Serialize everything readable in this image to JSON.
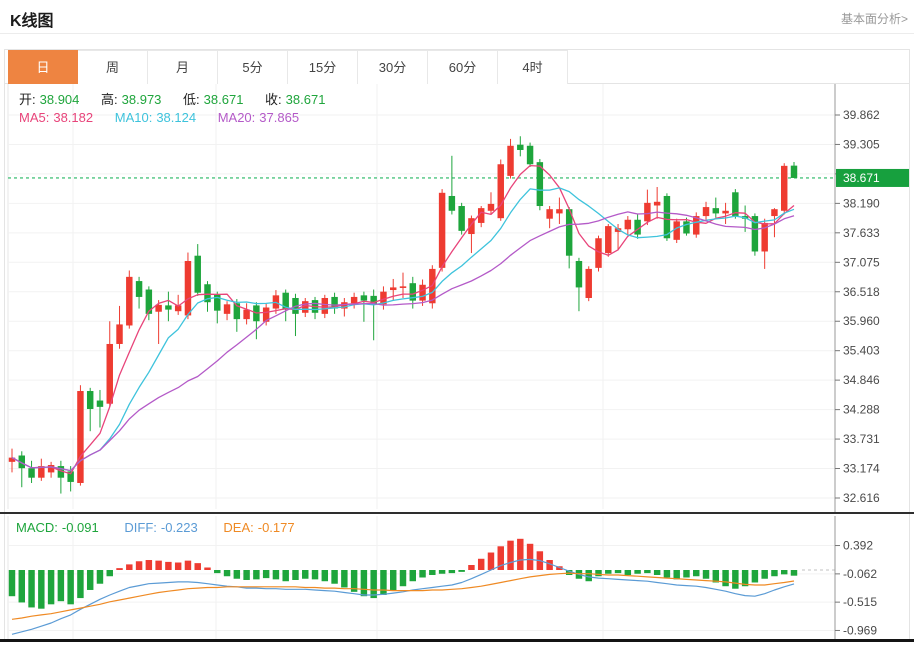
{
  "header": {
    "title": "K线图",
    "link": "基本面分析>"
  },
  "tabs": {
    "items": [
      "日",
      "周",
      "月",
      "5分",
      "15分",
      "30分",
      "60分",
      "4时"
    ],
    "active_index": 0
  },
  "legend": {
    "ohlc": {
      "open_label": "开:",
      "open_value": "38.904",
      "high_label": "高:",
      "high_value": "38.973",
      "low_label": "低:",
      "low_value": "38.671",
      "close_label": "收:",
      "close_value": "38.671"
    },
    "ma": {
      "ma5_label": "MA5:",
      "ma5_value": "38.182",
      "ma10_label": "MA10:",
      "ma10_value": "38.124",
      "ma20_label": "MA20:",
      "ma20_value": "37.865"
    },
    "macd": {
      "macd_label": "MACD:",
      "macd_value": "-0.091",
      "diff_label": "DIFF:",
      "diff_value": "-0.223",
      "dea_label": "DEA:",
      "dea_value": "-0.177"
    }
  },
  "price_badge": {
    "value": "38.671"
  },
  "colors": {
    "up": "#ee3b31",
    "down": "#1ea53c",
    "badge": "#17a03e",
    "dashed_line": "#4cc47e",
    "ma5": "#e8447a",
    "ma10": "#3ec3dc",
    "ma20": "#b45ac8",
    "diff": "#5b9bd5",
    "dea": "#ef8a24",
    "active_tab": "#ee8441",
    "grid": "#f2f2f2",
    "axis_line": "#9a9a9a",
    "axis_text": "#4a4a4a",
    "ohlc_value": "#1fa53c"
  },
  "chart_data": {
    "type": "candlestick_with_macd",
    "main": {
      "type": "candlestick",
      "y_ticks": [
        39.862,
        39.305,
        38.748,
        38.19,
        37.633,
        37.075,
        36.518,
        35.96,
        35.403,
        34.846,
        34.288,
        33.731,
        33.174,
        32.616
      ],
      "current_price": 38.671,
      "ma_periods": [
        5,
        10,
        20
      ],
      "candles_ohlc": [
        [
          33.3,
          33.55,
          33.1,
          33.38
        ],
        [
          33.42,
          33.5,
          32.82,
          33.18
        ],
        [
          33.18,
          33.32,
          32.9,
          33.0
        ],
        [
          33.0,
          33.36,
          32.94,
          33.22
        ],
        [
          33.1,
          33.3,
          33.0,
          33.24
        ],
        [
          33.22,
          33.32,
          32.7,
          33.0
        ],
        [
          33.12,
          33.22,
          32.74,
          32.92
        ],
        [
          32.9,
          34.75,
          32.85,
          34.64
        ],
        [
          34.64,
          34.7,
          33.88,
          34.3
        ],
        [
          34.46,
          34.66,
          33.95,
          34.34
        ],
        [
          34.4,
          35.96,
          34.34,
          35.53
        ],
        [
          35.53,
          36.25,
          35.44,
          35.9
        ],
        [
          35.88,
          36.92,
          35.82,
          36.8
        ],
        [
          36.72,
          36.8,
          36.2,
          36.42
        ],
        [
          36.56,
          36.62,
          35.98,
          36.1
        ],
        [
          36.14,
          36.36,
          35.53,
          36.27
        ],
        [
          36.26,
          36.52,
          35.96,
          36.18
        ],
        [
          36.15,
          36.46,
          36.08,
          36.26
        ],
        [
          36.07,
          37.26,
          36.0,
          37.1
        ],
        [
          37.2,
          37.42,
          36.44,
          36.5
        ],
        [
          36.66,
          36.72,
          36.14,
          36.32
        ],
        [
          36.46,
          36.52,
          35.92,
          36.16
        ],
        [
          36.1,
          36.34,
          35.98,
          36.28
        ],
        [
          36.3,
          36.38,
          35.76,
          36.0
        ],
        [
          36.0,
          36.3,
          35.9,
          36.18
        ],
        [
          36.26,
          36.32,
          35.62,
          35.96
        ],
        [
          35.95,
          36.3,
          35.88,
          36.22
        ],
        [
          36.2,
          36.55,
          36.1,
          36.45
        ],
        [
          36.5,
          36.56,
          35.96,
          36.18
        ],
        [
          36.4,
          36.48,
          35.68,
          36.1
        ],
        [
          36.12,
          36.4,
          36.04,
          36.34
        ],
        [
          36.36,
          36.42,
          36.0,
          36.12
        ],
        [
          36.1,
          36.46,
          36.02,
          36.4
        ],
        [
          36.42,
          36.5,
          36.1,
          36.2
        ],
        [
          36.2,
          36.4,
          36.05,
          36.32
        ],
        [
          36.3,
          36.5,
          36.2,
          36.42
        ],
        [
          36.45,
          36.52,
          35.95,
          36.35
        ],
        [
          36.44,
          36.56,
          35.6,
          36.28
        ],
        [
          36.28,
          36.62,
          36.18,
          36.52
        ],
        [
          36.55,
          36.76,
          36.35,
          36.6
        ],
        [
          36.6,
          36.88,
          36.4,
          36.62
        ],
        [
          36.68,
          36.8,
          36.2,
          36.35
        ],
        [
          36.35,
          36.75,
          36.25,
          36.65
        ],
        [
          36.3,
          37.02,
          36.2,
          36.95
        ],
        [
          36.97,
          38.46,
          36.9,
          38.39
        ],
        [
          38.33,
          39.09,
          37.98,
          38.05
        ],
        [
          38.14,
          38.2,
          37.6,
          37.67
        ],
        [
          37.61,
          37.96,
          37.25,
          37.91
        ],
        [
          37.82,
          38.14,
          37.74,
          38.1
        ],
        [
          38.05,
          38.4,
          37.98,
          38.18
        ],
        [
          37.91,
          39.02,
          37.86,
          38.93
        ],
        [
          38.71,
          39.41,
          38.66,
          39.28
        ],
        [
          39.3,
          39.46,
          39.08,
          39.2
        ],
        [
          39.28,
          39.34,
          38.88,
          38.93
        ],
        [
          38.97,
          39.03,
          38.06,
          38.14
        ],
        [
          37.9,
          38.14,
          37.72,
          38.08
        ],
        [
          38.0,
          38.3,
          37.8,
          38.08
        ],
        [
          38.08,
          38.12,
          36.96,
          37.2
        ],
        [
          37.1,
          37.16,
          36.15,
          36.6
        ],
        [
          36.4,
          37.0,
          36.34,
          36.95
        ],
        [
          36.97,
          37.58,
          36.9,
          37.53
        ],
        [
          37.25,
          37.8,
          37.18,
          37.76
        ],
        [
          37.65,
          37.8,
          37.3,
          37.72
        ],
        [
          37.7,
          37.95,
          37.6,
          37.88
        ],
        [
          37.88,
          37.98,
          37.52,
          37.6
        ],
        [
          37.85,
          38.45,
          37.78,
          38.2
        ],
        [
          38.15,
          38.5,
          37.9,
          38.22
        ],
        [
          38.33,
          38.38,
          37.48,
          37.53
        ],
        [
          37.5,
          37.9,
          37.44,
          37.85
        ],
        [
          37.85,
          37.92,
          37.58,
          37.62
        ],
        [
          37.6,
          38.02,
          37.54,
          37.95
        ],
        [
          37.95,
          38.22,
          37.85,
          38.12
        ],
        [
          38.1,
          38.3,
          37.92,
          38.0
        ],
        [
          38.0,
          38.2,
          37.8,
          38.05
        ],
        [
          38.4,
          38.46,
          37.9,
          37.95
        ],
        [
          37.95,
          38.15,
          37.65,
          37.9
        ],
        [
          37.95,
          38.0,
          37.2,
          37.28
        ],
        [
          37.28,
          37.9,
          36.95,
          37.82
        ],
        [
          37.95,
          38.1,
          37.55,
          38.08
        ],
        [
          38.05,
          38.95,
          37.98,
          38.9
        ],
        [
          38.904,
          38.973,
          38.671,
          38.671
        ]
      ]
    },
    "macd": {
      "y_ticks": [
        0.392,
        -0.062,
        -0.515,
        -0.969
      ],
      "histogram": [
        -0.42,
        -0.52,
        -0.6,
        -0.62,
        -0.55,
        -0.5,
        -0.55,
        -0.45,
        -0.32,
        -0.22,
        -0.1,
        0.03,
        0.09,
        0.14,
        0.16,
        0.15,
        0.13,
        0.12,
        0.15,
        0.11,
        0.04,
        -0.05,
        -0.1,
        -0.14,
        -0.16,
        -0.15,
        -0.13,
        -0.15,
        -0.18,
        -0.16,
        -0.14,
        -0.15,
        -0.18,
        -0.22,
        -0.28,
        -0.35,
        -0.42,
        -0.45,
        -0.4,
        -0.33,
        -0.26,
        -0.18,
        -0.12,
        -0.08,
        -0.06,
        -0.05,
        -0.03,
        0.08,
        0.18,
        0.28,
        0.38,
        0.47,
        0.5,
        0.42,
        0.3,
        0.16,
        0.06,
        -0.08,
        -0.14,
        -0.18,
        -0.1,
        -0.06,
        -0.05,
        -0.08,
        -0.06,
        -0.05,
        -0.08,
        -0.12,
        -0.15,
        -0.12,
        -0.1,
        -0.14,
        -0.2,
        -0.26,
        -0.3,
        -0.26,
        -0.2,
        -0.14,
        -0.1,
        -0.07,
        -0.091
      ],
      "diff": [
        -1.03,
        -0.99,
        -0.95,
        -0.9,
        -0.85,
        -0.78,
        -0.72,
        -0.63,
        -0.55,
        -0.47,
        -0.4,
        -0.34,
        -0.28,
        -0.25,
        -0.22,
        -0.21,
        -0.2,
        -0.19,
        -0.19,
        -0.2,
        -0.22,
        -0.24,
        -0.26,
        -0.27,
        -0.29,
        -0.29,
        -0.3,
        -0.3,
        -0.31,
        -0.31,
        -0.31,
        -0.32,
        -0.33,
        -0.34,
        -0.36,
        -0.38,
        -0.4,
        -0.4,
        -0.39,
        -0.37,
        -0.35,
        -0.32,
        -0.3,
        -0.28,
        -0.26,
        -0.24,
        -0.2,
        -0.14,
        -0.07,
        0.0,
        0.07,
        0.12,
        0.16,
        0.17,
        0.15,
        0.1,
        0.04,
        -0.02,
        -0.07,
        -0.11,
        -0.13,
        -0.14,
        -0.15,
        -0.16,
        -0.17,
        -0.18,
        -0.2,
        -0.22,
        -0.24,
        -0.25,
        -0.26,
        -0.28,
        -0.31,
        -0.34,
        -0.38,
        -0.41,
        -0.42,
        -0.38,
        -0.32,
        -0.27,
        -0.223
      ],
      "dea": [
        -0.79,
        -0.77,
        -0.74,
        -0.72,
        -0.7,
        -0.67,
        -0.64,
        -0.61,
        -0.58,
        -0.55,
        -0.51,
        -0.48,
        -0.45,
        -0.42,
        -0.39,
        -0.36,
        -0.34,
        -0.32,
        -0.3,
        -0.29,
        -0.28,
        -0.28,
        -0.27,
        -0.27,
        -0.27,
        -0.27,
        -0.27,
        -0.27,
        -0.27,
        -0.27,
        -0.28,
        -0.28,
        -0.29,
        -0.29,
        -0.3,
        -0.3,
        -0.31,
        -0.32,
        -0.32,
        -0.33,
        -0.33,
        -0.33,
        -0.33,
        -0.32,
        -0.32,
        -0.31,
        -0.3,
        -0.28,
        -0.26,
        -0.23,
        -0.2,
        -0.17,
        -0.14,
        -0.11,
        -0.09,
        -0.07,
        -0.06,
        -0.05,
        -0.06,
        -0.06,
        -0.07,
        -0.08,
        -0.08,
        -0.09,
        -0.1,
        -0.11,
        -0.12,
        -0.13,
        -0.14,
        -0.15,
        -0.16,
        -0.17,
        -0.18,
        -0.19,
        -0.21,
        -0.23,
        -0.24,
        -0.24,
        -0.22,
        -0.2,
        -0.177
      ]
    }
  }
}
